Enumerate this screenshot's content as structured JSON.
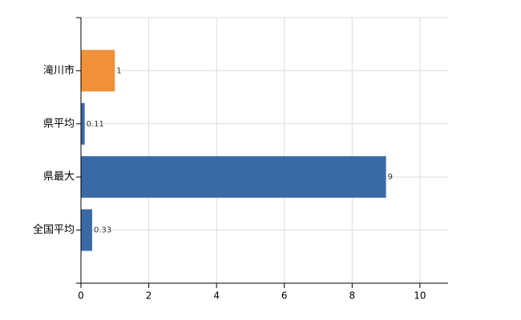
{
  "chart_data": {
    "type": "bar",
    "orientation": "horizontal",
    "categories": [
      "滝川市",
      "県平均",
      "県最大",
      "全国平均"
    ],
    "values": [
      1,
      0.11,
      9,
      0.33
    ],
    "colors": [
      "#f0913a",
      "#3a6aa6",
      "#3a6aa6",
      "#3a6aa6"
    ],
    "xlim": [
      0,
      10.83
    ],
    "xticks": [
      0,
      2,
      4,
      6,
      8,
      10
    ],
    "grid": true
  }
}
